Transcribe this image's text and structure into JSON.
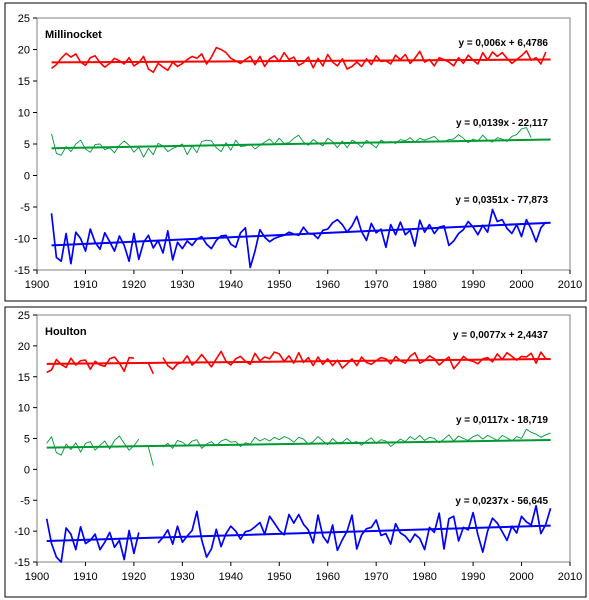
{
  "chart_data": [
    {
      "type": "line",
      "title": "Millinocket",
      "xlabel": "",
      "ylabel": "",
      "xlim": [
        1900,
        2010
      ],
      "ylim": [
        -15,
        25
      ],
      "xticks": [
        1900,
        1910,
        1920,
        1930,
        1940,
        1950,
        1960,
        1970,
        1980,
        1990,
        2000,
        2010
      ],
      "yticks": [
        -15,
        -10,
        -5,
        0,
        5,
        10,
        15,
        20,
        25
      ],
      "grid": false,
      "legend": "none",
      "series": [
        {
          "color": "#ff0000",
          "x_start": 1903,
          "values": [
            17.0,
            17.6,
            18.6,
            19.4,
            18.8,
            19.3,
            18.0,
            17.5,
            18.7,
            19.0,
            17.9,
            17.2,
            17.8,
            18.6,
            18.2,
            17.7,
            18.7,
            17.4,
            17.9,
            18.9,
            16.9,
            16.4,
            17.8,
            17.2,
            16.7,
            18.0,
            17.3,
            17.8,
            18.4,
            18.9,
            18.6,
            19.3,
            17.7,
            18.8,
            20.3,
            20.0,
            19.5,
            18.6,
            18.2,
            17.8,
            18.4,
            18.9,
            17.6,
            18.9,
            17.3,
            18.5,
            19.0,
            18.1,
            19.5,
            18.4,
            18.8,
            17.5,
            17.9,
            18.8,
            17.1,
            18.6,
            17.4,
            19.2,
            18.0,
            17.4,
            18.5,
            16.9,
            17.3,
            18.0,
            17.3,
            18.5,
            17.6,
            19.0,
            18.1,
            18.2,
            17.7,
            19.1,
            18.4,
            19.2,
            17.8,
            18.6,
            19.7,
            18.0,
            18.4,
            17.4,
            18.7,
            18.4,
            18.0,
            17.4,
            18.7,
            17.8,
            19.1,
            18.3,
            17.7,
            19.5,
            18.3,
            19.6,
            18.9,
            19.5,
            18.6,
            17.8,
            18.4,
            19.0,
            19.8,
            18.3,
            18.7,
            17.7,
            19.6
          ]
        },
        {
          "color": "#009933",
          "x_start": 1903,
          "values": [
            6.6,
            3.5,
            3.2,
            4.6,
            3.8,
            5.0,
            5.6,
            4.2,
            3.7,
            4.9,
            5.0,
            4.1,
            4.4,
            3.6,
            4.8,
            5.5,
            4.8,
            3.7,
            4.5,
            2.9,
            4.3,
            3.3,
            5.1,
            4.7,
            3.8,
            4.3,
            4.6,
            5.0,
            3.3,
            4.7,
            3.6,
            5.4,
            5.6,
            5.5,
            4.4,
            3.8,
            5.2,
            4.0,
            5.6,
            4.6,
            4.7,
            5.0,
            4.2,
            4.8,
            5.3,
            5.8,
            5.0,
            5.9,
            5.1,
            5.2,
            5.9,
            6.4,
            5.3,
            4.8,
            5.7,
            5.2,
            4.7,
            5.9,
            5.4,
            4.4,
            5.5,
            4.4,
            5.6,
            5.2,
            4.5,
            5.6,
            5.0,
            4.4,
            5.6,
            5.2,
            5.4,
            5.1,
            5.7,
            5.5,
            6.0,
            5.3,
            5.9,
            5.6,
            5.9,
            6.2,
            5.5,
            5.4,
            5.7,
            5.8,
            6.5,
            5.9,
            5.2,
            5.8,
            5.5,
            6.4,
            5.6,
            5.3,
            6.0,
            5.8,
            5.4,
            6.2,
            6.5,
            7.4,
            7.6,
            6.0
          ]
        },
        {
          "color": "#0000ff",
          "x_start": 1903,
          "values": [
            -6.0,
            -13.0,
            -13.6,
            -9.2,
            -14.0,
            -9.0,
            -10.0,
            -12.0,
            -8.5,
            -10.6,
            -11.7,
            -9.1,
            -10.5,
            -12.0,
            -9.6,
            -11.1,
            -13.6,
            -9.2,
            -13.3,
            -10.6,
            -9.5,
            -11.5,
            -10.3,
            -12.3,
            -8.8,
            -13.4,
            -10.6,
            -11.6,
            -10.4,
            -11.1,
            -10.1,
            -9.7,
            -10.9,
            -11.6,
            -10.3,
            -9.6,
            -9.5,
            -10.9,
            -11.4,
            -9.1,
            -8.3,
            -14.6,
            -12.0,
            -8.6,
            -9.8,
            -10.5,
            -10.0,
            -9.7,
            -9.5,
            -9.0,
            -9.3,
            -9.5,
            -8.2,
            -9.2,
            -9.3,
            -10.0,
            -8.7,
            -8.5,
            -7.5,
            -7.0,
            -7.8,
            -9.0,
            -8.0,
            -6.5,
            -8.9,
            -10.3,
            -7.6,
            -9.1,
            -8.5,
            -11.4,
            -7.8,
            -9.4,
            -7.4,
            -9.4,
            -8.7,
            -11.2,
            -7.1,
            -9.0,
            -7.8,
            -9.2,
            -8.2,
            -8.0,
            -11.1,
            -10.4,
            -9.2,
            -8.6,
            -7.3,
            -8.2,
            -9.4,
            -7.9,
            -9.0,
            -5.4,
            -7.3,
            -7.0,
            -8.4,
            -9.2,
            -7.8,
            -9.7,
            -7.0,
            -8.5,
            -10.5,
            -8.3,
            -7.4
          ]
        }
      ],
      "trendlines": [
        {
          "color": "#ff0000",
          "x": [
            1903,
            2006
          ],
          "y": [
            17.95,
            18.42
          ],
          "equation": "y = 0,006x + 6,4786"
        },
        {
          "color": "#009933",
          "x": [
            1903,
            2006
          ],
          "y": [
            4.33,
            5.72
          ],
          "equation": "y = 0,0139x - 22,117"
        },
        {
          "color": "#0000ff",
          "x": [
            1903,
            2006
          ],
          "y": [
            -11.1,
            -7.5
          ],
          "equation": "y = 0,0351x - 77,873"
        }
      ]
    },
    {
      "type": "line",
      "title": "Houlton",
      "xlabel": "",
      "ylabel": "",
      "xlim": [
        1900,
        2010
      ],
      "ylim": [
        -15,
        25
      ],
      "xticks": [
        1900,
        1910,
        1920,
        1930,
        1940,
        1950,
        1960,
        1970,
        1980,
        1990,
        2000,
        2010
      ],
      "yticks": [
        -15,
        -10,
        -5,
        0,
        5,
        10,
        15,
        20,
        25
      ],
      "grid": false,
      "legend": "none",
      "series": [
        {
          "color": "#ff0000",
          "x_start": 1902,
          "values": [
            15.7,
            16.1,
            17.8,
            17.0,
            16.5,
            18.0,
            16.9,
            17.6,
            17.7,
            16.2,
            17.5,
            16.9,
            16.7,
            17.9,
            18.2,
            17.2,
            15.9,
            18.1,
            18.0,
            null,
            null,
            17.2,
            15.5,
            null,
            18.1,
            16.8,
            16.2,
            17.1,
            17.3,
            18.4,
            16.9,
            17.6,
            18.6,
            17.6,
            16.6,
            17.9,
            19.1,
            17.5,
            16.9,
            17.9,
            18.3,
            17.5,
            17.0,
            18.8,
            17.6,
            18.2,
            17.9,
            19.0,
            18.7,
            17.5,
            18.4,
            17.2,
            18.9,
            17.3,
            18.1,
            16.8,
            18.2,
            17.0,
            17.9,
            16.8,
            17.7,
            16.4,
            17.1,
            17.9,
            16.8,
            18.2,
            17.3,
            17.0,
            17.6,
            18.1,
            17.9,
            17.1,
            18.3,
            17.6,
            17.2,
            18.3,
            18.9,
            17.2,
            17.6,
            18.4,
            17.9,
            16.9,
            17.6,
            18.2,
            16.3,
            17.2,
            18.3,
            17.7,
            17.5,
            17.1,
            17.9,
            18.1,
            17.4,
            18.7,
            17.8,
            18.9,
            18.3,
            17.7,
            18.3,
            18.2,
            18.8,
            17.2,
            19.0,
            17.9,
            17.8
          ]
        },
        {
          "color": "#009933",
          "x_start": 1902,
          "values": [
            4.2,
            5.3,
            2.7,
            2.3,
            4.1,
            3.2,
            4.3,
            2.8,
            4.2,
            4.5,
            3.1,
            3.9,
            4.6,
            3.3,
            4.7,
            5.4,
            4.2,
            3.1,
            3.8,
            4.9,
            null,
            3.6,
            0.6,
            null,
            3.6,
            4.2,
            3.4,
            4.7,
            4.4,
            3.8,
            4.6,
            4.8,
            3.4,
            4.1,
            4.5,
            3.8,
            4.6,
            4.9,
            4.4,
            4.5,
            3.7,
            4.3,
            4.1,
            5.2,
            4.6,
            5.0,
            4.6,
            5.2,
            4.8,
            5.3,
            5.0,
            4.4,
            5.2,
            4.9,
            4.1,
            4.5,
            5.3,
            4.6,
            4.0,
            5.0,
            4.3,
            4.4,
            5.0,
            4.3,
            4.5,
            3.9,
            4.6,
            5.1,
            4.2,
            4.8,
            4.6,
            3.7,
            4.3,
            4.9,
            4.5,
            5.3,
            4.8,
            5.5,
            4.7,
            5.2,
            5.0,
            4.3,
            4.9,
            5.6,
            4.6,
            5.4,
            5.0,
            4.7,
            5.3,
            5.6,
            4.9,
            5.5,
            5.1,
            4.7,
            5.5,
            5.1,
            4.6,
            5.3,
            5.0,
            6.5,
            6.0,
            5.7,
            5.2,
            5.6,
            5.9
          ]
        },
        {
          "color": "#0000ff",
          "x_start": 1902,
          "values": [
            -8.0,
            -12.0,
            -14.2,
            -15.0,
            -9.5,
            -10.5,
            -13.0,
            -9.3,
            -12.0,
            -11.5,
            -10.5,
            -13.0,
            -11.8,
            -10.2,
            -12.6,
            -11.5,
            -14.6,
            -9.9,
            -13.6,
            -10.2,
            null,
            null,
            null,
            -11.9,
            -11.0,
            -9.8,
            -12.1,
            -9.2,
            -11.8,
            -10.8,
            -9.9,
            -6.8,
            -11.4,
            -14.2,
            -12.9,
            -9.7,
            -12.5,
            -10.4,
            -9.2,
            -10.0,
            -11.3,
            -10.1,
            -9.9,
            -9.3,
            -8.6,
            -10.5,
            -7.6,
            -8.7,
            -9.9,
            -10.6,
            -7.3,
            -8.7,
            -7.3,
            -8.9,
            -9.8,
            -11.9,
            -7.4,
            -10.8,
            -11.9,
            -9.0,
            -13.1,
            -11.4,
            -10.0,
            -7.4,
            -12.9,
            -10.6,
            -9.6,
            -9.4,
            -8.2,
            -10.7,
            -10.4,
            -12.1,
            -8.8,
            -10.3,
            -10.8,
            -11.8,
            -10.5,
            -11.2,
            -13.0,
            -9.4,
            -10.2,
            -7.1,
            -12.9,
            -8.0,
            -7.6,
            -11.6,
            -9.4,
            -9.8,
            -7.0,
            -10.6,
            -13.4,
            -10.0,
            -7.9,
            -8.7,
            -10.1,
            -11.5,
            -9.2,
            -10.3,
            -7.6,
            -8.5,
            -9.0,
            -5.9,
            -10.4,
            -8.9,
            -6.3
          ]
        }
      ],
      "trendlines": [
        {
          "color": "#ff0000",
          "x": [
            1902,
            2006
          ],
          "y": [
            17.08,
            17.88
          ],
          "equation": "y = 0,0077x + 2,4437"
        },
        {
          "color": "#009933",
          "x": [
            1902,
            2006
          ],
          "y": [
            3.53,
            4.75
          ],
          "equation": "y = 0,0117x - 18,719"
        },
        {
          "color": "#0000ff",
          "x": [
            1902,
            2006
          ],
          "y": [
            -11.6,
            -9.1
          ],
          "equation": "y = 0,0237x - 56,645"
        }
      ]
    }
  ]
}
